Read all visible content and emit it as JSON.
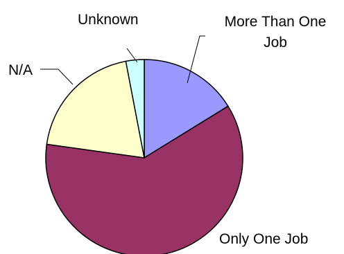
{
  "chart_data": {
    "type": "pie",
    "slices": [
      {
        "label_lines": [
          "More Than One",
          "Job"
        ],
        "value": 16.2,
        "color": "#9999ff"
      },
      {
        "label_lines": [
          "Only One Job"
        ],
        "value": 61.0,
        "color": "#993366"
      },
      {
        "label_lines": [
          "N/A"
        ],
        "value": 19.8,
        "color": "#ffffcc"
      },
      {
        "label_lines": [
          "Unknown"
        ],
        "value": 3.0,
        "color": "#ccffff"
      }
    ],
    "start": "12 o'clock",
    "direction": "clockwise"
  }
}
